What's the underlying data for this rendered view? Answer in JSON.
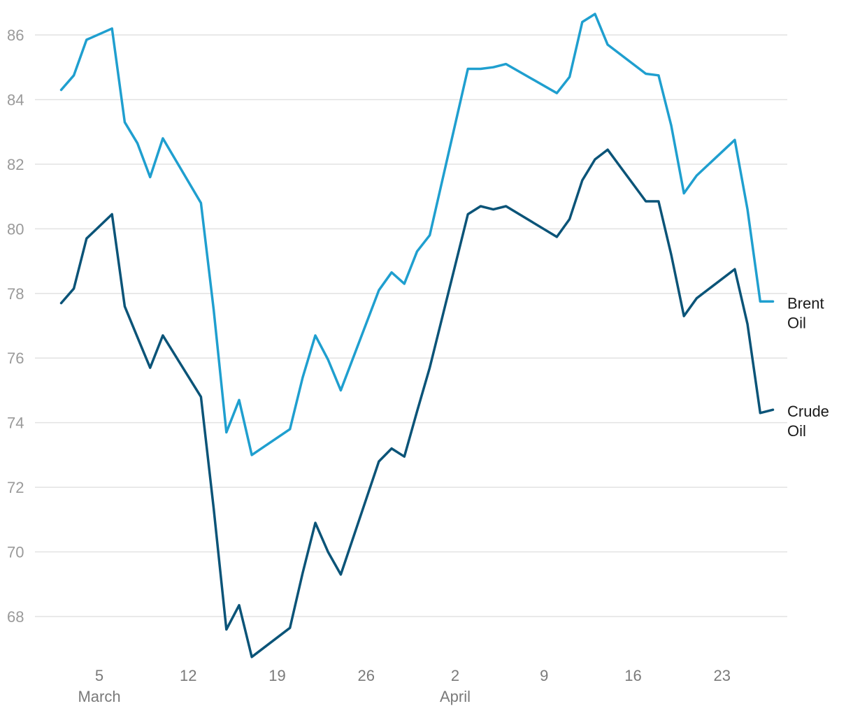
{
  "chart_data": {
    "type": "line",
    "title": "",
    "xlabel": "",
    "ylabel": "",
    "ylim": [
      66.5,
      87
    ],
    "y_ticks": [
      68,
      70,
      72,
      74,
      76,
      78,
      80,
      82,
      84,
      86
    ],
    "grid": true,
    "x_ticks": [
      {
        "date": "2023-03-05",
        "label": "5"
      },
      {
        "date": "2023-03-12",
        "label": "12"
      },
      {
        "date": "2023-03-19",
        "label": "19"
      },
      {
        "date": "2023-03-26",
        "label": "26"
      },
      {
        "date": "2023-04-02",
        "label": "2"
      },
      {
        "date": "2023-04-09",
        "label": "9"
      },
      {
        "date": "2023-04-16",
        "label": "16"
      },
      {
        "date": "2023-04-23",
        "label": "23"
      }
    ],
    "month_labels": [
      {
        "date": "2023-03-05",
        "label": "March"
      },
      {
        "date": "2023-04-02",
        "label": "April"
      }
    ],
    "xlim": [
      "2023-03-01",
      "2023-04-30"
    ],
    "x": [
      "2023-03-02",
      "2023-03-03",
      "2023-03-04",
      "2023-03-06",
      "2023-03-07",
      "2023-03-08",
      "2023-03-09",
      "2023-03-10",
      "2023-03-13",
      "2023-03-14",
      "2023-03-15",
      "2023-03-16",
      "2023-03-17",
      "2023-03-20",
      "2023-03-21",
      "2023-03-22",
      "2023-03-23",
      "2023-03-24",
      "2023-03-27",
      "2023-03-28",
      "2023-03-29",
      "2023-03-30",
      "2023-03-31",
      "2023-04-03",
      "2023-04-04",
      "2023-04-05",
      "2023-04-06",
      "2023-04-10",
      "2023-04-11",
      "2023-04-12",
      "2023-04-13",
      "2023-04-14",
      "2023-04-17",
      "2023-04-18",
      "2023-04-19",
      "2023-04-20",
      "2023-04-21",
      "2023-04-24",
      "2023-04-25",
      "2023-04-26",
      "2023-04-27"
    ],
    "series": [
      {
        "name": "Brent Oil",
        "label_lines": [
          "Brent",
          "Oil"
        ],
        "color": "#1f9fcf",
        "values": [
          84.3,
          84.75,
          85.85,
          86.2,
          83.3,
          82.65,
          81.6,
          82.8,
          80.8,
          77.5,
          73.7,
          74.7,
          73.0,
          73.8,
          75.4,
          76.7,
          75.95,
          75.0,
          78.1,
          78.65,
          78.3,
          79.3,
          79.8,
          84.95,
          84.95,
          85.0,
          85.1,
          84.2,
          84.7,
          86.4,
          86.65,
          85.7,
          84.8,
          84.75,
          83.2,
          81.1,
          81.65,
          82.75,
          80.6,
          77.75,
          77.75
        ]
      },
      {
        "name": "Crude Oil",
        "label_lines": [
          "Crude",
          "Oil"
        ],
        "color": "#0b5478",
        "values": [
          77.7,
          78.15,
          79.7,
          80.45,
          77.6,
          76.65,
          75.7,
          76.7,
          74.8,
          71.35,
          67.6,
          68.35,
          66.75,
          67.65,
          69.35,
          70.9,
          70.0,
          69.3,
          72.8,
          73.2,
          72.95,
          74.35,
          75.7,
          80.45,
          80.7,
          80.6,
          80.7,
          79.75,
          80.3,
          81.5,
          82.15,
          82.45,
          80.85,
          80.85,
          79.2,
          77.3,
          77.85,
          78.75,
          77.05,
          74.3,
          74.4
        ]
      }
    ]
  }
}
